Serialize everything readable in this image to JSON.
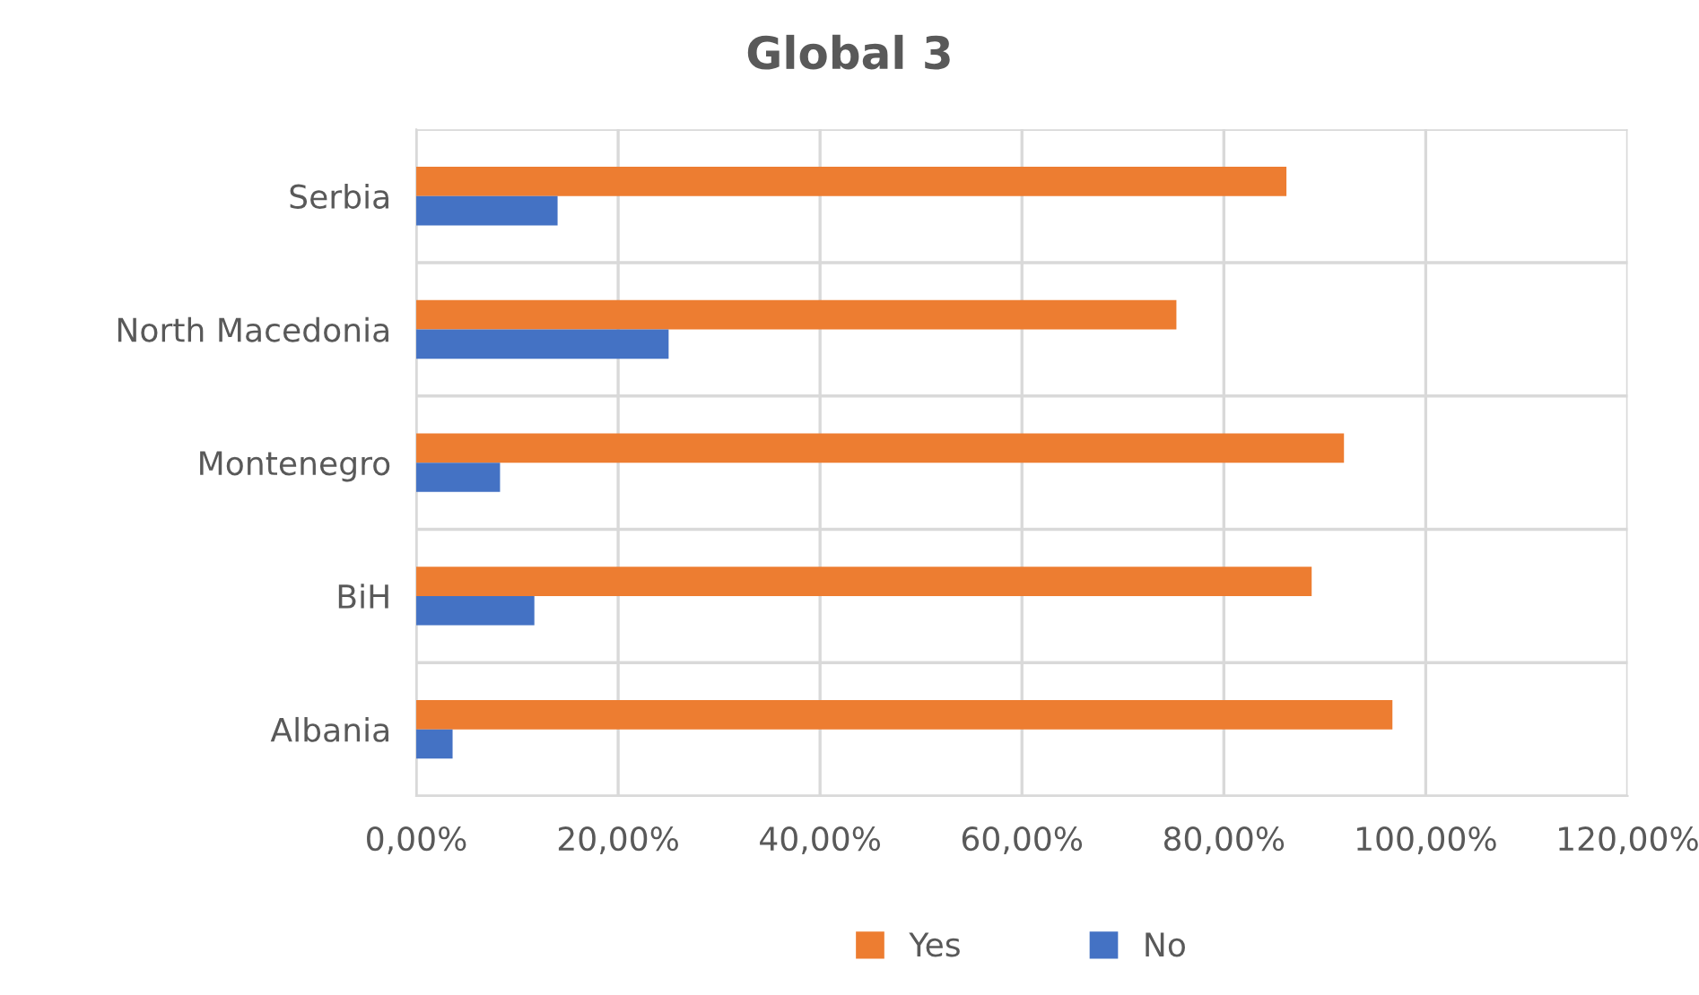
{
  "chart_data": {
    "type": "bar",
    "orientation": "horizontal",
    "title": "Global 3",
    "categories": [
      "Serbia",
      "North Macedonia",
      "Montenegro",
      "BiH",
      "Albania"
    ],
    "series": [
      {
        "name": "Yes",
        "color": "#ed7d31",
        "values": [
          86.2,
          75.3,
          91.9,
          88.7,
          96.7
        ]
      },
      {
        "name": "No",
        "color": "#4472c4",
        "values": [
          14.0,
          25.0,
          8.3,
          11.7,
          3.6
        ]
      }
    ],
    "xlim": [
      0,
      120
    ],
    "xticks": [
      {
        "value": 0,
        "label": "0,00%"
      },
      {
        "value": 20,
        "label": "20,00%"
      },
      {
        "value": 40,
        "label": "40,00%"
      },
      {
        "value": 60,
        "label": "60,00%"
      },
      {
        "value": 80,
        "label": "80,00%"
      },
      {
        "value": 100,
        "label": "100,00%"
      },
      {
        "value": 120,
        "label": "120,00%"
      }
    ],
    "grid": true,
    "legend": "bottom"
  }
}
